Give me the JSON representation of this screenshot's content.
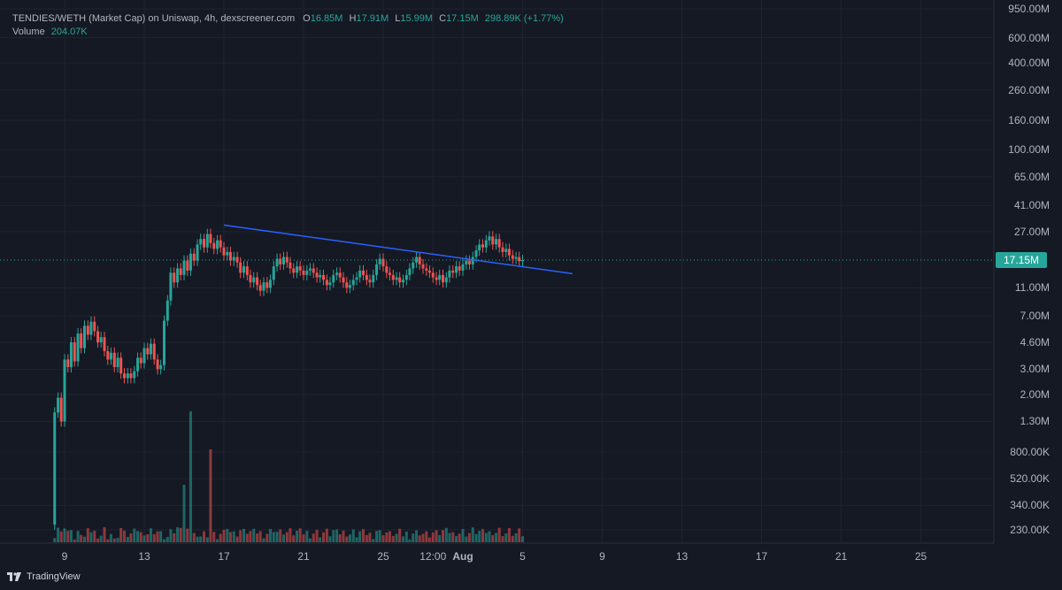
{
  "header": {
    "title": "TENDIES/WETH (Market Cap) on Uniswap, 4h, dexscreener.com",
    "open_label": "O",
    "open_value": "16.85M",
    "high_label": "H",
    "high_value": "17.91M",
    "low_label": "L",
    "low_value": "15.99M",
    "close_label": "C",
    "close_value": "17.15M",
    "change": "298.89K (+1.77%)"
  },
  "volume": {
    "label": "Volume",
    "value": "204.07K"
  },
  "price_tag": "17.15M",
  "footer": {
    "brand": "TradingView"
  },
  "colors": {
    "up": "#26a69a",
    "down": "#ef5350",
    "trendline": "#2962ff",
    "background": "#151924"
  },
  "chart_data": {
    "type": "candlestick",
    "y_scale": "log",
    "y_ticks": [
      "950.00M",
      "600.00M",
      "400.00M",
      "260.00M",
      "160.00M",
      "100.00M",
      "65.00M",
      "41.00M",
      "27.00M",
      "17.15M",
      "11.00M",
      "7.00M",
      "4.60M",
      "3.00M",
      "2.00M",
      "1.30M",
      "800.00K",
      "520.00K",
      "340.00K",
      "230.00K"
    ],
    "y_tick_values": [
      950,
      600,
      400,
      260,
      160,
      100,
      65,
      41,
      27,
      17.15,
      11,
      7,
      4.6,
      3,
      2,
      1.3,
      0.8,
      0.52,
      0.34,
      0.23
    ],
    "x_ticks": [
      "9",
      "13",
      "17",
      "21",
      "25",
      "12:00",
      "Aug",
      "5",
      "9",
      "13",
      "17",
      "21",
      "25"
    ],
    "x_tick_days": [
      9,
      13,
      17,
      21,
      25,
      27.5,
      29,
      32,
      36,
      40,
      44,
      48,
      52
    ],
    "last_close": 17.15,
    "candles": [
      [
        8.5,
        0.25,
        1.5
      ],
      [
        8.67,
        1.5,
        1.9
      ],
      [
        8.83,
        1.9,
        1.3
      ],
      [
        9.0,
        1.3,
        3.5
      ],
      [
        9.17,
        3.5,
        3.1
      ],
      [
        9.33,
        3.1,
        4.6
      ],
      [
        9.5,
        4.6,
        3.4
      ],
      [
        9.67,
        3.4,
        5.3
      ],
      [
        9.83,
        5.3,
        4.2
      ],
      [
        10.0,
        4.2,
        6.0
      ],
      [
        10.17,
        6.0,
        5.2
      ],
      [
        10.33,
        5.2,
        6.4
      ],
      [
        10.5,
        6.4,
        5.5
      ],
      [
        10.67,
        5.5,
        4.6
      ],
      [
        10.83,
        4.6,
        5.0
      ],
      [
        11.0,
        5.0,
        4.0
      ],
      [
        11.17,
        4.0,
        3.5
      ],
      [
        11.33,
        3.5,
        3.9
      ],
      [
        11.5,
        3.9,
        3.1
      ],
      [
        11.67,
        3.1,
        3.6
      ],
      [
        11.83,
        3.6,
        2.8
      ],
      [
        12.0,
        2.8,
        2.6
      ],
      [
        12.17,
        2.6,
        2.8
      ],
      [
        12.33,
        2.8,
        2.6
      ],
      [
        12.5,
        2.6,
        2.9
      ],
      [
        12.67,
        2.9,
        3.6
      ],
      [
        12.83,
        3.6,
        3.3
      ],
      [
        13.0,
        3.3,
        4.2
      ],
      [
        13.17,
        4.2,
        3.8
      ],
      [
        13.33,
        3.8,
        4.5
      ],
      [
        13.5,
        4.5,
        3.5
      ],
      [
        13.67,
        3.5,
        3.0
      ],
      [
        13.83,
        3.0,
        3.2
      ],
      [
        14.0,
        3.2,
        6.5
      ],
      [
        14.17,
        6.5,
        9.0
      ],
      [
        14.33,
        9.0,
        14.0
      ],
      [
        14.5,
        14.0,
        12.0
      ],
      [
        14.67,
        12.0,
        15.0
      ],
      [
        14.83,
        15.0,
        13.5
      ],
      [
        15.0,
        13.5,
        17.0
      ],
      [
        15.17,
        17.0,
        14.5
      ],
      [
        15.33,
        14.5,
        19.0
      ],
      [
        15.5,
        19.0,
        17.0
      ],
      [
        15.67,
        17.0,
        22.0
      ],
      [
        15.83,
        22.0,
        24.0
      ],
      [
        16.0,
        24.0,
        21.0
      ],
      [
        16.17,
        21.0,
        26.0
      ],
      [
        16.33,
        26.0,
        22.5
      ],
      [
        16.5,
        22.5,
        20.5
      ],
      [
        16.67,
        20.5,
        23.5
      ],
      [
        16.83,
        23.5,
        21.0
      ],
      [
        17.0,
        21.0,
        18.5
      ],
      [
        17.17,
        18.5,
        19.5
      ],
      [
        17.33,
        19.5,
        17.0
      ],
      [
        17.5,
        17.0,
        18.0
      ],
      [
        17.67,
        18.0,
        16.5
      ],
      [
        17.83,
        16.5,
        14.0
      ],
      [
        18.0,
        14.0,
        15.5
      ],
      [
        18.17,
        15.5,
        13.5
      ],
      [
        18.33,
        13.5,
        12.0
      ],
      [
        18.5,
        12.0,
        13.0
      ],
      [
        18.67,
        13.0,
        11.5
      ],
      [
        18.83,
        11.5,
        10.5
      ],
      [
        19.0,
        10.5,
        12.0
      ],
      [
        19.17,
        12.0,
        11.0
      ],
      [
        19.33,
        11.0,
        12.5
      ],
      [
        19.5,
        12.5,
        15.5
      ],
      [
        19.67,
        15.5,
        17.5
      ],
      [
        19.83,
        17.5,
        16.0
      ],
      [
        20.0,
        16.0,
        18.0
      ],
      [
        20.17,
        18.0,
        16.5
      ],
      [
        20.33,
        16.5,
        15.0
      ],
      [
        20.5,
        15.0,
        14.0
      ],
      [
        20.67,
        14.0,
        15.5
      ],
      [
        20.83,
        15.5,
        14.5
      ],
      [
        21.0,
        14.5,
        13.5
      ],
      [
        21.17,
        13.5,
        14.5
      ],
      [
        21.33,
        14.5,
        15.0
      ],
      [
        21.5,
        15.0,
        14.0
      ],
      [
        21.67,
        14.0,
        13.0
      ],
      [
        21.83,
        13.0,
        13.5
      ],
      [
        22.0,
        13.5,
        12.5
      ],
      [
        22.17,
        12.5,
        11.5
      ],
      [
        22.33,
        11.5,
        12.0
      ],
      [
        22.5,
        12.0,
        13.5
      ],
      [
        22.67,
        13.5,
        14.0
      ],
      [
        22.83,
        14.0,
        13.0
      ],
      [
        23.0,
        13.0,
        12.0
      ],
      [
        23.17,
        12.0,
        11.0
      ],
      [
        23.33,
        11.0,
        11.5
      ],
      [
        23.5,
        11.5,
        12.5
      ],
      [
        23.67,
        12.5,
        13.0
      ],
      [
        23.83,
        13.0,
        14.5
      ],
      [
        24.0,
        14.5,
        13.5
      ],
      [
        24.17,
        13.5,
        12.5
      ],
      [
        24.33,
        12.5,
        12.0
      ],
      [
        24.5,
        12.0,
        13.5
      ],
      [
        24.67,
        13.5,
        16.0
      ],
      [
        24.83,
        16.0,
        17.5
      ],
      [
        25.0,
        17.5,
        15.5
      ],
      [
        25.17,
        15.5,
        14.0
      ],
      [
        25.33,
        14.0,
        13.5
      ],
      [
        25.5,
        13.5,
        12.5
      ],
      [
        25.67,
        12.5,
        13.0
      ],
      [
        25.83,
        13.0,
        12.0
      ],
      [
        26.0,
        12.0,
        12.5
      ],
      [
        26.17,
        12.5,
        13.5
      ],
      [
        26.33,
        13.5,
        15.0
      ],
      [
        26.5,
        15.0,
        16.5
      ],
      [
        26.67,
        16.5,
        18.0
      ],
      [
        26.83,
        18.0,
        16.0
      ],
      [
        27.0,
        16.0,
        15.0
      ],
      [
        27.17,
        15.0,
        14.5
      ],
      [
        27.33,
        14.5,
        14.0
      ],
      [
        27.5,
        14.0,
        13.0
      ],
      [
        27.67,
        13.0,
        12.5
      ],
      [
        27.83,
        12.5,
        13.5
      ],
      [
        28.0,
        13.5,
        12.0
      ],
      [
        28.17,
        12.0,
        13.0
      ],
      [
        28.33,
        13.0,
        14.5
      ],
      [
        28.5,
        14.5,
        14.0
      ],
      [
        28.67,
        14.0,
        15.5
      ],
      [
        28.83,
        15.5,
        14.5
      ],
      [
        29.0,
        14.5,
        16.0
      ],
      [
        29.17,
        16.0,
        17.0
      ],
      [
        29.33,
        17.0,
        16.0
      ],
      [
        29.5,
        16.0,
        18.0
      ],
      [
        29.67,
        18.0,
        20.0
      ],
      [
        29.83,
        20.0,
        22.0
      ],
      [
        30.0,
        22.0,
        21.0
      ],
      [
        30.17,
        21.0,
        23.5
      ],
      [
        30.33,
        23.5,
        25.0
      ],
      [
        30.5,
        25.0,
        22.0
      ],
      [
        30.67,
        22.0,
        24.0
      ],
      [
        30.83,
        24.0,
        21.0
      ],
      [
        31.0,
        21.0,
        19.5
      ],
      [
        31.17,
        19.5,
        20.5
      ],
      [
        31.33,
        20.5,
        18.5
      ],
      [
        31.5,
        18.5,
        17.5
      ],
      [
        31.67,
        17.5,
        18.0
      ],
      [
        31.83,
        18.0,
        16.85
      ],
      [
        32.0,
        16.85,
        17.15
      ]
    ],
    "trendline": {
      "start": [
        17.0,
        30.0
      ],
      "end": [
        34.5,
        13.8
      ]
    },
    "volume_max": 204.07
  }
}
